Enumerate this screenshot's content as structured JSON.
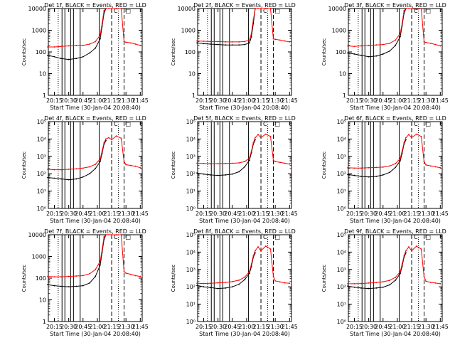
{
  "colors": {
    "events": "#000000",
    "lld": "#ff0000",
    "axis": "#000000"
  },
  "common": {
    "ylabel": "Counts/sec",
    "xlabel": "Start Time (30-Jan-04 20:08:40)",
    "x_ticks": [
      "20:15",
      "20:30",
      "20:45",
      "21:00",
      "21:15",
      "21:30",
      "21:45"
    ],
    "y_ticks_plain": [
      "1",
      "10",
      "100",
      "1000",
      "10000"
    ],
    "y_ticks_exp": [
      "10⁰",
      "10¹",
      "10²",
      "10³",
      "10⁴",
      "10⁵"
    ]
  },
  "chart_data": [
    {
      "type": "line",
      "title": "Det 1f, BLACK = Events, RED = LLD",
      "x_range": [
        "20:08:40",
        "21:47:00"
      ],
      "ylim": [
        1,
        10000
      ],
      "yscale": "log",
      "tick_style": "plain",
      "x": [
        "20:08",
        "20:15",
        "20:22",
        "20:30",
        "20:38",
        "20:45",
        "20:52",
        "20:58",
        "21:03",
        "21:05",
        "21:07",
        "21:09",
        "21:12",
        "21:15",
        "21:20",
        "21:25",
        "21:28",
        "21:30",
        "21:35",
        "21:40",
        "21:45"
      ],
      "series": [
        {
          "name": "BLACK = Events",
          "values": [
            70,
            60,
            50,
            45,
            50,
            60,
            90,
            150,
            400,
            1500,
            6000,
            10000,
            null,
            null,
            null,
            null,
            null,
            null,
            null,
            null,
            null
          ]
        },
        {
          "name": "RED = LLD",
          "values": [
            170,
            170,
            180,
            190,
            200,
            200,
            230,
            300,
            600,
            2000,
            8000,
            10000,
            10000,
            10000,
            10000,
            10000,
            300,
            280,
            260,
            230,
            200
          ]
        }
      ],
      "annotations": [
        "C",
        "□"
      ]
    },
    {
      "type": "line",
      "title": "Det 2f, BLACK = Events, RED = LLD",
      "x_range": [
        "20:08:40",
        "21:47:00"
      ],
      "ylim": [
        1,
        10000
      ],
      "yscale": "log",
      "tick_style": "plain",
      "x": [
        "20:08",
        "20:15",
        "20:22",
        "20:30",
        "20:38",
        "20:45",
        "20:52",
        "20:58",
        "21:03",
        "21:05",
        "21:07",
        "21:09",
        "21:12",
        "21:15",
        "21:20",
        "21:25",
        "21:28",
        "21:30",
        "21:35",
        "21:40",
        "21:45"
      ],
      "series": [
        {
          "name": "BLACK = Events",
          "values": [
            260,
            240,
            230,
            220,
            210,
            210,
            210,
            220,
            260,
            500,
            2000,
            10000,
            null,
            null,
            null,
            null,
            null,
            null,
            null,
            null,
            null
          ]
        },
        {
          "name": "RED = LLD",
          "values": [
            320,
            310,
            300,
            300,
            290,
            290,
            290,
            300,
            350,
            700,
            3000,
            10000,
            10000,
            10000,
            10000,
            10000,
            400,
            380,
            350,
            320,
            290
          ]
        }
      ],
      "annotations": [
        "C",
        "□"
      ]
    },
    {
      "type": "line",
      "title": "Det 3f, BLACK = Events, RED = LLD",
      "x_range": [
        "20:08:40",
        "21:47:00"
      ],
      "ylim": [
        1,
        10000
      ],
      "yscale": "log",
      "tick_style": "plain",
      "x": [
        "20:08",
        "20:15",
        "20:22",
        "20:30",
        "20:38",
        "20:45",
        "20:52",
        "20:58",
        "21:03",
        "21:05",
        "21:07",
        "21:09",
        "21:12",
        "21:15",
        "21:20",
        "21:25",
        "21:28",
        "21:30",
        "21:35",
        "21:40",
        "21:45"
      ],
      "series": [
        {
          "name": "BLACK = Events",
          "values": [
            90,
            80,
            70,
            60,
            65,
            80,
            110,
            200,
            500,
            1600,
            6000,
            10000,
            null,
            null,
            null,
            null,
            null,
            null,
            null,
            null,
            null
          ]
        },
        {
          "name": "RED = LLD",
          "values": [
            190,
            180,
            190,
            200,
            210,
            220,
            250,
            350,
            700,
            2000,
            8000,
            10000,
            10000,
            10000,
            9000,
            10000,
            300,
            270,
            250,
            220,
            190
          ]
        }
      ],
      "annotations": [
        "C",
        "□"
      ]
    },
    {
      "type": "line",
      "title": "Det 4f, BLACK = Events, RED = LLD",
      "x_range": [
        "20:08:40",
        "21:47:00"
      ],
      "ylim": [
        1,
        100000
      ],
      "yscale": "log",
      "tick_style": "exponent",
      "x": [
        "20:08",
        "20:15",
        "20:22",
        "20:30",
        "20:38",
        "20:45",
        "20:52",
        "20:58",
        "21:03",
        "21:05",
        "21:07",
        "21:09",
        "21:12",
        "21:15",
        "21:20",
        "21:25",
        "21:28",
        "21:30",
        "21:35",
        "21:40",
        "21:45"
      ],
      "series": [
        {
          "name": "BLACK = Events",
          "values": [
            60,
            55,
            50,
            45,
            50,
            65,
            100,
            200,
            500,
            1500,
            5000,
            8000,
            null,
            null,
            null,
            null,
            null,
            null,
            null,
            null,
            null
          ]
        },
        {
          "name": "RED = LLD",
          "values": [
            180,
            170,
            170,
            180,
            190,
            210,
            250,
            350,
            700,
            2000,
            6000,
            10000,
            12000,
            9000,
            15000,
            11000,
            500,
            330,
            300,
            270,
            220
          ]
        }
      ],
      "annotations": [
        "C",
        "□"
      ]
    },
    {
      "type": "line",
      "title": "Det 5f, BLACK = Events, RED = LLD",
      "x_range": [
        "20:08:40",
        "21:47:00"
      ],
      "ylim": [
        1,
        100000
      ],
      "yscale": "log",
      "tick_style": "exponent",
      "x": [
        "20:08",
        "20:15",
        "20:22",
        "20:30",
        "20:38",
        "20:45",
        "20:52",
        "20:58",
        "21:03",
        "21:05",
        "21:07",
        "21:09",
        "21:12",
        "21:15",
        "21:20",
        "21:25",
        "21:28",
        "21:30",
        "21:35",
        "21:40",
        "21:45"
      ],
      "series": [
        {
          "name": "BLACK = Events",
          "values": [
            110,
            95,
            85,
            80,
            85,
            95,
            130,
            250,
            600,
            1600,
            5000,
            9000,
            null,
            null,
            null,
            null,
            null,
            null,
            null,
            null,
            null
          ]
        },
        {
          "name": "RED = LLD",
          "values": [
            400,
            390,
            380,
            380,
            390,
            400,
            420,
            500,
            800,
            2000,
            6000,
            12000,
            18000,
            12000,
            19000,
            14000,
            600,
            500,
            450,
            400,
            360
          ]
        }
      ],
      "annotations": [
        "C",
        "□"
      ]
    },
    {
      "type": "line",
      "title": "Det 6f, BLACK = Events, RED = LLD",
      "x_range": [
        "20:08:40",
        "21:47:00"
      ],
      "ylim": [
        1,
        100000
      ],
      "yscale": "log",
      "tick_style": "exponent",
      "x": [
        "20:08",
        "20:15",
        "20:22",
        "20:30",
        "20:38",
        "20:45",
        "20:52",
        "20:58",
        "21:03",
        "21:05",
        "21:07",
        "21:09",
        "21:12",
        "21:15",
        "21:20",
        "21:25",
        "21:28",
        "21:30",
        "21:35",
        "21:40",
        "21:45"
      ],
      "series": [
        {
          "name": "BLACK = Events",
          "values": [
            90,
            80,
            70,
            65,
            70,
            85,
            120,
            230,
            550,
            1500,
            5000,
            9000,
            null,
            null,
            null,
            null,
            null,
            null,
            null,
            null,
            null
          ]
        },
        {
          "name": "RED = LLD",
          "values": [
            220,
            210,
            210,
            220,
            230,
            240,
            280,
            380,
            750,
            2000,
            6000,
            12000,
            18000,
            12000,
            19000,
            14000,
            500,
            320,
            280,
            250,
            220
          ]
        }
      ],
      "annotations": [
        "C",
        "□"
      ]
    },
    {
      "type": "line",
      "title": "Det 7f, BLACK = Events, RED = LLD",
      "x_range": [
        "20:08:40",
        "21:47:00"
      ],
      "ylim": [
        1,
        10000
      ],
      "yscale": "log",
      "tick_style": "plain",
      "x": [
        "20:08",
        "20:15",
        "20:22",
        "20:30",
        "20:38",
        "20:45",
        "20:52",
        "20:58",
        "21:03",
        "21:05",
        "21:07",
        "21:09",
        "21:12",
        "21:15",
        "21:20",
        "21:25",
        "21:28",
        "21:30",
        "21:35",
        "21:40",
        "21:45"
      ],
      "series": [
        {
          "name": "BLACK = Events",
          "values": [
            50,
            45,
            42,
            40,
            42,
            45,
            60,
            120,
            400,
            1500,
            6000,
            10000,
            null,
            null,
            null,
            null,
            null,
            null,
            null,
            null,
            null
          ]
        },
        {
          "name": "RED = LLD",
          "values": [
            120,
            115,
            115,
            120,
            125,
            130,
            160,
            250,
            600,
            2000,
            8000,
            10000,
            10000,
            10000,
            10000,
            10000,
            200,
            170,
            150,
            130,
            120
          ]
        }
      ],
      "annotations": [
        "C",
        "□"
      ]
    },
    {
      "type": "line",
      "title": "Det 8f, BLACK = Events, RED = LLD",
      "x_range": [
        "20:08:40",
        "21:47:00"
      ],
      "ylim": [
        1,
        100000
      ],
      "yscale": "log",
      "tick_style": "exponent",
      "x": [
        "20:08",
        "20:15",
        "20:22",
        "20:30",
        "20:38",
        "20:45",
        "20:52",
        "20:58",
        "21:03",
        "21:05",
        "21:07",
        "21:09",
        "21:12",
        "21:15",
        "21:20",
        "21:25",
        "21:28",
        "21:30",
        "21:35",
        "21:40",
        "21:45"
      ],
      "series": [
        {
          "name": "BLACK = Events",
          "values": [
            120,
            100,
            90,
            80,
            85,
            100,
            140,
            260,
            600,
            1500,
            5000,
            9000,
            null,
            null,
            null,
            null,
            null,
            null,
            null,
            null,
            null
          ]
        },
        {
          "name": "RED = LLD",
          "values": [
            160,
            155,
            160,
            170,
            180,
            200,
            240,
            360,
            750,
            2000,
            6000,
            12000,
            20000,
            12000,
            22000,
            15000,
            400,
            220,
            190,
            170,
            160
          ]
        }
      ],
      "annotations": [
        "C",
        "□"
      ]
    },
    {
      "type": "line",
      "title": "Det 9f, BLACK = Events, RED = LLD",
      "x_range": [
        "20:08:40",
        "21:47:00"
      ],
      "ylim": [
        1,
        100000
      ],
      "yscale": "log",
      "tick_style": "exponent",
      "x": [
        "20:08",
        "20:15",
        "20:22",
        "20:30",
        "20:38",
        "20:45",
        "20:52",
        "20:58",
        "21:03",
        "21:05",
        "21:07",
        "21:09",
        "21:12",
        "21:15",
        "21:20",
        "21:25",
        "21:28",
        "21:30",
        "21:35",
        "21:40",
        "21:45"
      ],
      "series": [
        {
          "name": "BLACK = Events",
          "values": [
            110,
            95,
            85,
            80,
            85,
            95,
            130,
            240,
            580,
            1500,
            5000,
            9000,
            null,
            null,
            null,
            null,
            null,
            null,
            null,
            null,
            null
          ]
        },
        {
          "name": "RED = LLD",
          "values": [
            150,
            150,
            155,
            165,
            175,
            195,
            235,
            350,
            730,
            2000,
            6000,
            12000,
            20000,
            12000,
            22000,
            15000,
            380,
            210,
            180,
            165,
            150
          ]
        }
      ],
      "annotations": [
        "C",
        "□"
      ]
    }
  ]
}
